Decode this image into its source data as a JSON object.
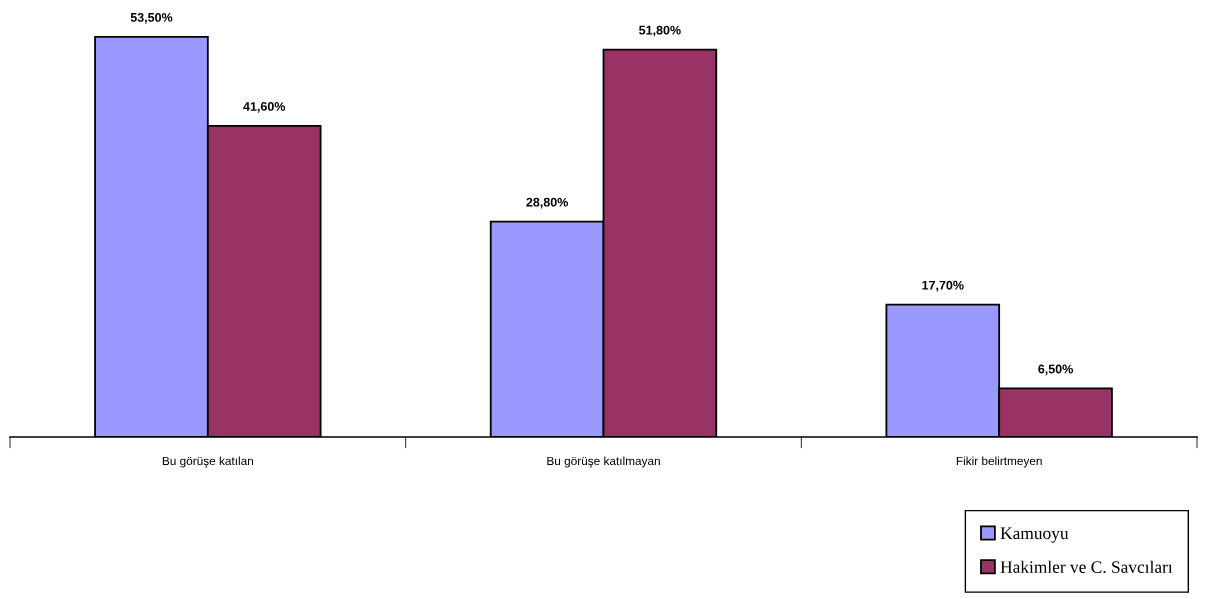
{
  "chart_data": {
    "type": "bar",
    "categories": [
      "Bu görüşe katılan",
      "Bu görüşe katılmayan",
      "Fikir belirtmeyen"
    ],
    "series": [
      {
        "name": "Kamuoyu",
        "color": "#9999ff",
        "values": [
          53.5,
          28.8,
          17.7
        ],
        "value_labels": [
          "53,50%",
          "28,80%",
          "17,70%"
        ]
      },
      {
        "name": "Hakimler ve C. Savcıları",
        "color": "#993366",
        "values": [
          41.6,
          51.8,
          6.5
        ],
        "value_labels": [
          "41,60%",
          "51,80%",
          "6,50%"
        ]
      }
    ],
    "legend": "bottom right",
    "grid": false
  }
}
